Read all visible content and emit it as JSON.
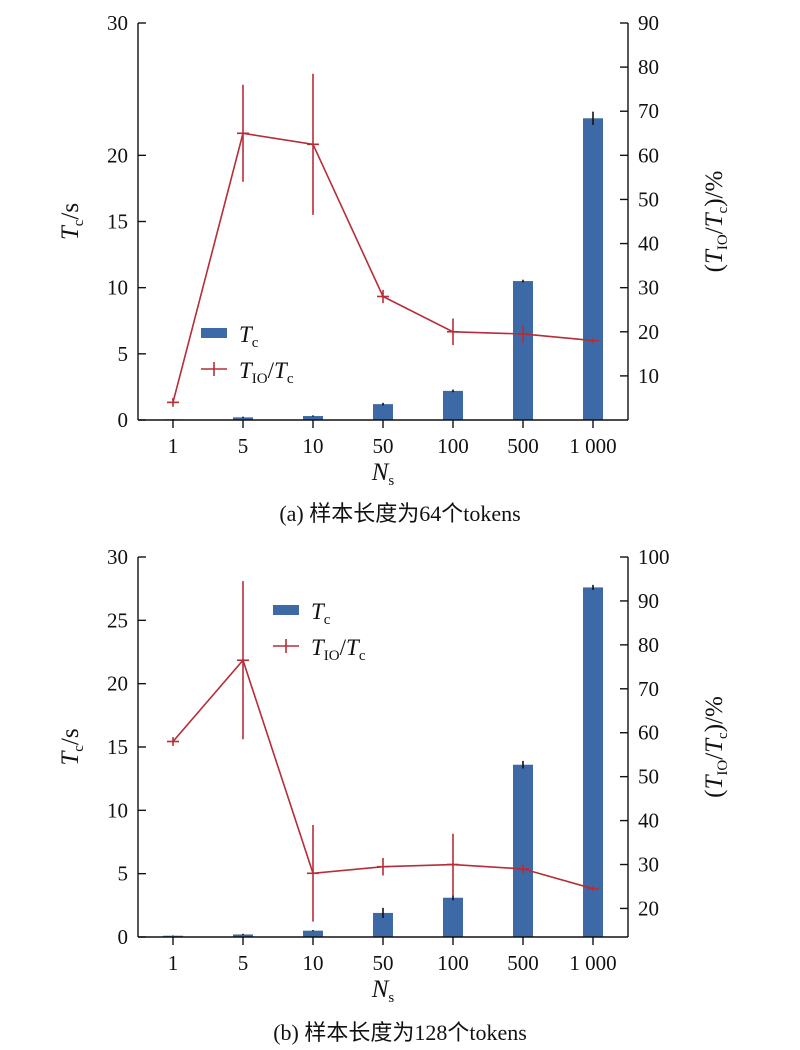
{
  "colors": {
    "bar": "#3d6aa6",
    "line": "#b52d38",
    "axis": "#111111"
  },
  "chart_data": [
    {
      "type": "bar",
      "caption": "(a) 样本长度为64个tokens",
      "categories": [
        "1",
        "5",
        "10",
        "50",
        "100",
        "500",
        "1 000"
      ],
      "xlabel": {
        "main": "N",
        "sub": "s"
      },
      "ylabel_left": {
        "main": "T",
        "sub": "c",
        "rest": "/s"
      },
      "ylabel_right": {
        "pre": "(T",
        "sub1": "IO",
        "mid": "/T",
        "sub2": "c",
        "post": ")/%"
      },
      "ylim_left": [
        0,
        30
      ],
      "yticks_left": [
        0,
        5,
        10,
        15,
        20,
        30
      ],
      "ylim_right": [
        0,
        90
      ],
      "yticks_right": [
        10,
        20,
        30,
        40,
        50,
        60,
        70,
        80,
        90
      ],
      "legend": {
        "bar_label": {
          "main": "T",
          "sub": "c"
        },
        "line_label": {
          "main": "T",
          "sub": "IO",
          "mid": "/T",
          "sub2": "c"
        },
        "position": "lower-left"
      },
      "series": [
        {
          "kind": "bar",
          "axis": "left",
          "values": [
            0.05,
            0.2,
            0.3,
            1.2,
            2.2,
            10.5,
            22.8
          ],
          "errors": [
            0.02,
            0.05,
            0.05,
            0.1,
            0.1,
            0.1,
            0.5
          ]
        },
        {
          "kind": "line",
          "axis": "right",
          "values": [
            4,
            65,
            62.5,
            28,
            20,
            19.5,
            18
          ],
          "errors": [
            1,
            11,
            16,
            1.5,
            3,
            2,
            0.5
          ]
        }
      ]
    },
    {
      "type": "bar",
      "caption": "(b) 样本长度为128个tokens",
      "categories": [
        "1",
        "5",
        "10",
        "50",
        "100",
        "500",
        "1 000"
      ],
      "xlabel": {
        "main": "N",
        "sub": "s"
      },
      "ylabel_left": {
        "main": "T",
        "sub": "c",
        "rest": "/s"
      },
      "ylabel_right": {
        "pre": "(T",
        "sub1": "IO",
        "mid": "/T",
        "sub2": "c",
        "post": ")/%"
      },
      "ylim_left": [
        0,
        30
      ],
      "yticks_left": [
        0,
        5,
        10,
        15,
        20,
        25,
        30
      ],
      "ylim_right": [
        13.5,
        100
      ],
      "yticks_right": [
        20,
        30,
        40,
        50,
        60,
        70,
        80,
        90,
        100
      ],
      "legend": {
        "bar_label": {
          "main": "T",
          "sub": "c"
        },
        "line_label": {
          "main": "T",
          "sub": "IO",
          "mid": "/T",
          "sub2": "c"
        },
        "position": "upper-center"
      },
      "series": [
        {
          "kind": "bar",
          "axis": "left",
          "values": [
            0.1,
            0.2,
            0.5,
            1.9,
            3.1,
            13.6,
            27.6
          ],
          "errors": [
            0.02,
            0.05,
            0.05,
            0.4,
            0.2,
            0.3,
            0.2
          ]
        },
        {
          "kind": "line",
          "axis": "right",
          "values": [
            58,
            76.5,
            28,
            29.5,
            30,
            29,
            24.5
          ],
          "errors": [
            1,
            18,
            11,
            2,
            7,
            1,
            0.5
          ]
        }
      ]
    }
  ]
}
